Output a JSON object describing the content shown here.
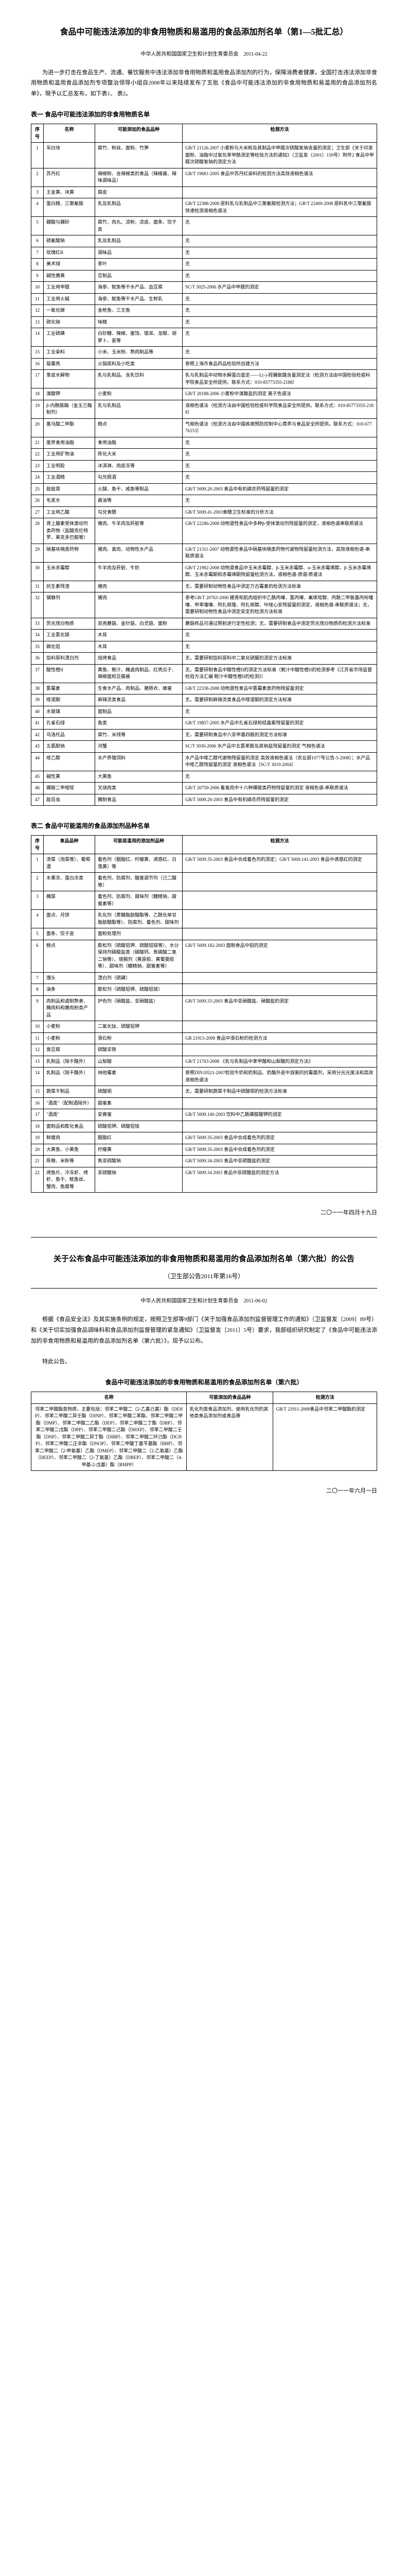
{
  "doc": {
    "title": "食品中可能违法添加的非食用物质和易滥用的食品添加剂名单（第1—5批汇总）",
    "issuer": "中华人民共和国国家卫生和计划生育委员会　2011-04-22",
    "intro": "为进一步打击在食品生产、流通、餐饮服务中违法添加非食用物质和滥用食品添加剂的行为，保障消费者健康，全国打击违法添加非食用物质和滥用食品添加剂专项整治领导小组自2008年以来陆续发布了五批《食品中可能违法添加的非食用物质和易滥用的食品添加剂名单》，現予以汇总发布，如下表1、 表2。",
    "table1_title": "表一 食品中可能违法添加的非食用物质名单",
    "table2_title": "表二 食品中可能滥用的食品添加剂品种名单",
    "footer_date1": "二〇一一年四月十九日",
    "footer_date2": "二〇一一年六月一日"
  },
  "t1h": {
    "c1": "序号",
    "c2": "名称",
    "c3": "可能添加的食品品种",
    "c4": "检测方法"
  },
  "t1": [
    {
      "n": "1",
      "name": "吊白块",
      "food": "腐竹、粉丝、面粉、竹笋",
      "method": "GB/T 21126-2007 小麦粉与大米粉及其制品中甲醛次硫酸氢钠含量的测定；卫生部《关于印发面粉、油脂中过氧化苯甲酰测定等检验方法的通知》（卫监发〔2001〕159号）附件2 食品中甲醛次硫酸氢钠的测定方法"
    },
    {
      "n": "2",
      "name": "苏丹红",
      "food": "辣椒粉、含辣椒类的食品（辣椒酱、辣味调味品）",
      "method": "GB/T 19681-2005 食品中苏丹红染料的检测方法高效液相色谱法"
    },
    {
      "n": "3",
      "name": "王金黄、块黄",
      "food": "腐皮",
      "method": ""
    },
    {
      "n": "4",
      "name": "蛋白精、三聚氰胺",
      "food": "乳及乳制品",
      "method": "GB/T 22388-2008 原料乳与乳制品中三聚氰胺检测方法；GB/T 22400-2008 原料乳中三聚氰胺快速检测液相色谱法"
    },
    {
      "n": "5",
      "name": "硼酸与硼砂",
      "food": "腐竹、肉丸、凉粉、凉皮、面条、饺子皮",
      "method": "无"
    },
    {
      "n": "6",
      "name": "硫氰酸钠",
      "food": "乳及乳制品",
      "method": "无"
    },
    {
      "n": "7",
      "name": "玫瑰红B",
      "food": "调味品",
      "method": "无"
    },
    {
      "n": "8",
      "name": "美术绿",
      "food": "茶叶",
      "method": "无"
    },
    {
      "n": "9",
      "name": "碱性嫩黄",
      "food": "豆制品",
      "method": "无"
    },
    {
      "n": "10",
      "name": "工业用甲醛",
      "food": "海参、鱿鱼等干水产品、血豆腐",
      "method": "SC/T 3025-2006 水产品中甲醛的测定"
    },
    {
      "n": "11",
      "name": "工业用火碱",
      "food": "海参、鱿鱼等干水产品、生鲜乳",
      "method": "无"
    },
    {
      "n": "12",
      "name": "一氧化碳",
      "food": "金枪鱼、三文鱼",
      "method": "无"
    },
    {
      "n": "13",
      "name": "硫化钠",
      "food": "味精",
      "method": "无"
    },
    {
      "n": "14",
      "name": "工业硫磺",
      "food": "白砂糖、辣椒、蜜饯、银耳、龙眼、胡萝卜、姜等",
      "method": "无"
    },
    {
      "n": "15",
      "name": "工业染料",
      "food": "小米、玉米粉、熟肉制品等",
      "method": "无"
    },
    {
      "n": "16",
      "name": "罂粟壳",
      "food": "火锅底料及小吃类",
      "method": "参照上海市食品药品检验所自建方法"
    },
    {
      "n": "17",
      "name": "革皮水解物",
      "food": "乳与乳制品、含乳饮料",
      "method": "乳与乳制品中动物水解蛋白鉴定——L(-)-羟脯氨酸含量测定法（检测方法由中国检验检疫科学院食品安全所提供。联系方式：010-85773355-2188）"
    },
    {
      "n": "18",
      "name": "溴酸钾",
      "food": "小麦粉",
      "method": "GB/T 20188-2006 小麦粉中溴酸盐的测定 离子色谱法"
    },
    {
      "n": "19",
      "name": "β-内酰胺酶（金玉兰酶制剂）",
      "food": "乳与乳制品",
      "method": "液相色谱法（检测方法由中国检验检疫科学院食品安全所提供。联系方式：010-85773355-2188）"
    },
    {
      "n": "20",
      "name": "富马酸二甲酯",
      "food": "糕点",
      "method": "气相色谱法（检测方法由中国疾病预防控制中心营养与食品安全所提供。联系方式：010-67776153）"
    },
    {
      "n": "21",
      "name": "废弃食用油脂",
      "food": "食用油脂",
      "method": "无"
    },
    {
      "n": "22",
      "name": "工业用矿物油",
      "food": "陈化大米",
      "method": "无"
    },
    {
      "n": "23",
      "name": "工业明胶",
      "food": "冰淇淋、肉皮冻等",
      "method": "无"
    },
    {
      "n": "24",
      "name": "工业酒精",
      "food": "勾兑假酒",
      "method": "无"
    },
    {
      "n": "25",
      "name": "敌敌畏",
      "food": "火腿、鱼干、咸鱼等制品",
      "method": "GB/T 5009.20-2003 食品中有机磷农药残留量的测定"
    },
    {
      "n": "26",
      "name": "毛发水",
      "food": "酱油等",
      "method": "无"
    },
    {
      "n": "27",
      "name": "工业用乙酸",
      "food": "勾兑食醋",
      "method": "GB/T 5009.41-2003食醋卫生标准的分析方法"
    },
    {
      "n": "28",
      "name": "肾上腺素受体激动剂类药物（盐酸克伦特罗，莱克多巴胺等）",
      "food": "猪肉、牛羊肉及肝脏等",
      "method": "GB/T 22286-2008 动物源性食品中多种β-受体激动剂残留量的测定，液相色谱串联质谱法"
    },
    {
      "n": "29",
      "name": "硝基呋喃类药物",
      "food": "猪肉、禽肉、动物性水产品",
      "method": "GB/T 21311-2007 动物源性食品中硝基呋喃类药物代谢物残留量检测方法，高效液相色谱-串联质谱法"
    },
    {
      "n": "30",
      "name": "玉米赤霉醇",
      "food": "牛羊肉及肝脏、牛奶",
      "method": "GB/T 21982-2008 动物源食品中玉米赤霉醇、β-玉米赤霉醇、α-玉米赤霉烯醇、β-玉米赤霉烯醇、玉米赤霉酮和赤霉烯酮残留量检测方法，液相色谱-质谱/质谱法"
    },
    {
      "n": "31",
      "name": "抗生素残渣",
      "food": "猪肉",
      "method": "无，需要研制动物性食品中测定万古霉素的检测方法标准"
    },
    {
      "n": "32",
      "name": "镇静剂",
      "food": "猪肉",
      "method": "参考GB/T 20763-2006 猪肾和肌肉组织中乙酰丙嗪、氯丙嗪、氟哌啶醇、丙酰二甲氨基丙吩噻嗪、甲苯噻嗪、阿扎哌隆、阿扎哌醇、咔唑心安残留量的测定，液相色谱-串联质谱法；无，需要研制动物性食品中测定安定的检测方法标准"
    },
    {
      "n": "33",
      "name": "荧光增白物质",
      "food": "双孢蘑菇、金针菇、白灵菇、面粉",
      "method": "蘑菇样品可通过照射进行定性检测；无，需要研制食品中测定荧光增白物质的检测方法标准"
    },
    {
      "n": "34",
      "name": "工业氯化镁",
      "food": "木耳",
      "method": "无"
    },
    {
      "n": "35",
      "name": "磷化铝",
      "food": "木耳",
      "method": "无"
    },
    {
      "n": "36",
      "name": "馅料原料漂白剂",
      "food": "焙烤食品",
      "method": "无，需要研制馅料原料中二氧化硫脲的测定方法标准"
    },
    {
      "n": "37",
      "name": "酸性橙II",
      "food": "黄鱼、鲍汁、腌卤肉制品、红壳瓜子、辣椒面和豆瓣酱",
      "method": "无，需要研制食品中酸性橙II的测定方法标准（鲍汁中酸性橙II的检测参考《江苏省市场监督检验方法汇编 鲍汁中酸性橙II的检测》）"
    },
    {
      "n": "38",
      "name": "氯霉素",
      "food": "生食水产品、肉制品、猪肠衣、蜂蜜",
      "method": "GB/T 22338-2008 动物源性食品中氯霉素类药物残留量测定"
    },
    {
      "n": "39",
      "name": "喹诺酮",
      "food": "麻辣烫类食品",
      "method": "无，需要研制麻辣烫类食品中喹诺酮的测定方法标准"
    },
    {
      "n": "40",
      "name": "水玻璃",
      "food": "面制品",
      "method": "无"
    },
    {
      "n": "41",
      "name": "孔雀石绿",
      "food": "鱼类",
      "method": "GB/T 19857-2005 水产品中孔雀石绿和结晶紫残留量的测定"
    },
    {
      "n": "42",
      "name": "乌洛托品",
      "food": "腐竹、米线等",
      "method": "无，需要研制食品中六亚甲基四胺的测定方法标准"
    },
    {
      "n": "43",
      "name": "五氯酚钠",
      "food": "河蟹",
      "method": "SC/T 3030-2006 水产品中五氯苯酚及其钠盐残留量的测定 气相色谱法"
    },
    {
      "n": "44",
      "name": "喹乙醇",
      "food": "水产养殖饲料",
      "method": "水产品中喹乙醇代谢物残留量的测定 高效液相色谱法（农业部1077号公告-5-2008）；水产品中喹乙醇残留量的测定 液相色谱法（SC/T 3019-2004）"
    },
    {
      "n": "45",
      "name": "碱性黄",
      "food": "大黄鱼",
      "method": "无"
    },
    {
      "n": "46",
      "name": "磺胺二甲嘧啶",
      "food": "叉烧肉类",
      "method": "GB/T 20759-2006 畜禽肉中十六种磺胺类药物残留量的测定 液相色谱-串联质谱法"
    },
    {
      "n": "47",
      "name": "敌百虫",
      "food": "腌制食品",
      "method": "GB/T 5009.20-2003 食品中有机磷农药残留量的测定"
    }
  ],
  "t2h": {
    "c1": "序号",
    "c2": "食品品种",
    "c3": "可能易滥用的添加剂品种",
    "c4": "检测方法"
  },
  "t2": [
    {
      "n": "1",
      "name": "渍菜（泡菜等）、葡萄酒",
      "food": "着色剂（胭脂红、柠檬黄、诱惑红、日落黄）等",
      "method": "GB/T 5009.35-2003  食品中合成着色剂的测定；GB/T 5009.141-2003 食品中诱惑红的测定"
    },
    {
      "n": "2",
      "name": "水果冻、蛋白冻类",
      "food": "着色剂、防腐剂、酸度调节剂（己二酸等）",
      "method": ""
    },
    {
      "n": "3",
      "name": "腌菜",
      "food": "着色剂、防腐剂、甜味剂（糖精钠、甜蜜素等）",
      "method": ""
    },
    {
      "n": "4",
      "name": "面点、月饼",
      "food": "乳化剂（蔗糖脂肪酸酯等、乙酰化单甘脂肪酸酯等）、防腐剂、着色剂、甜味剂",
      "method": ""
    },
    {
      "n": "5",
      "name": "面条、饺子皮",
      "food": "面粉处理剂",
      "method": ""
    },
    {
      "n": "6",
      "name": "糕点",
      "food": "膨松剂（硫酸铝钾、硫酸铝铵等）、水分保持剂磷酸盐类（磷酸钙、焦磷酸二氢二钠等）、增稠剂（黄原胶、黄蜀葵胶等）、甜味剂（糖精钠、甜蜜素等）",
      "method": "GB/T 5009.182-2003 面制食品中铝的测定"
    },
    {
      "n": "7",
      "name": "馒头",
      "food": "漂白剂（硫磺）",
      "method": ""
    },
    {
      "n": "8",
      "name": "油条",
      "food": "膨松剂（硫酸铝钾、硫酸铝铵）",
      "method": ""
    },
    {
      "n": "9",
      "name": "肉制品和卤制熟食、腌肉料和嫩肉粉类产品",
      "food": "护色剂（硝酸盐、亚硝酸盐）",
      "method": "GB/T 5009.33-2003 食品中亚硝酸盐、硝酸盐的测定"
    },
    {
      "n": "10",
      "name": "小麦粉",
      "food": "二氧化钛、硫酸铝钾",
      "method": ""
    },
    {
      "n": "11",
      "name": "小麦粉",
      "food": "滑石粉",
      "method": "GB 21913-2008 食品中滑石粉的检测方法"
    },
    {
      "n": "12",
      "name": "臭豆腐",
      "food": "硫酸亚铁",
      "method": ""
    },
    {
      "n": "13",
      "name": "乳制品（除干酪外）",
      "food": "山梨酸",
      "method": "GB/T 21703-2008 《乳与乳制品中苯甲酸和山梨酸的测定方法》"
    },
    {
      "n": "14",
      "name": "乳制品（除干酪外）",
      "food": "纳他霉素",
      "method": "参照DIN10521-2007检验牛奶和奶制品、奶酪外皮中游离的抗霉菌剂，采用分光光度法和高效液相色谱法"
    },
    {
      "n": "15",
      "name": "蔬菜干制品",
      "food": "硫酸铜",
      "method": "无，需要研制蔬菜干制品中硫酸铜的检测方法标准"
    },
    {
      "n": "16",
      "name": "\"酒类\"（配制酒除外）",
      "food": "甜蜜素",
      "method": ""
    },
    {
      "n": "17",
      "name": "\"酒类\"",
      "food": "安赛蜜",
      "method": "GB/T 5009.140-2003 饮料中乙酰磺胺酸钾的测定"
    },
    {
      "n": "18",
      "name": "面制品和膨化食品",
      "food": "硫酸铝钾、硫酸铝铵",
      "method": ""
    },
    {
      "n": "19",
      "name": "鲜瘦肉",
      "food": "胭脂红",
      "method": "GB/T 5009.35-2003 食品中合成着色剂的测定"
    },
    {
      "n": "20",
      "name": "大黄鱼、小黄鱼",
      "food": "柠檬黄",
      "method": "GB/T 5009.35-2003 食品中合成着色剂的测定"
    },
    {
      "n": "21",
      "name": "陈粮、米粉等",
      "food": "焦亚硫酸钠",
      "method": "GB/T 5009.34-2003 食品中亚硫酸盐的测定"
    },
    {
      "n": "22",
      "name": "烤鱼片、冷冻虾、烤虾、鱼干、鱿鱼丝、蟹肉、鱼糜等",
      "food": "亚硫酸钠",
      "method": "GB/T 5009.34 2003 食品中亚硫酸盐的测定方法"
    }
  ],
  "notice": {
    "title": "关于公布食品中可能违法添加的非食用物质和易滥用的食品添加剂名单（第六批）的公告",
    "sub": "（卫生部公告2011年第16号）",
    "issuer": "中华人民共和国国家卫生和计划生育委员会　2011-06-02",
    "body": "根据《食品安全法》及其实施条例的规定，按照卫生部等9部门《关于加强食品添加剂监督管理工作的通知》（卫监督发〔2009〕89号）和《关于切实加强食品调味料和食品添加剂监督管理的紧急通知》（卫监督发〔2011〕5号）要求，我部组织研究制定了《食品中可能违法添加的非食用物质和易滥用的食品添加剂名单（第六批）》，现予以公布。",
    "closing": "特此公告。",
    "table_title": "食品中可能违法添加的非食用物质和易滥用的食品添加剂名单（第六批）",
    "th1": "名称",
    "th2": "可能添加的食品品种",
    "th3": "检测方法"
  },
  "t3": [
    {
      "name": "邻苯二甲酸酯类物质，主要包括：邻苯二甲酸二（2-乙基己基）酯（DEHP）、邻苯二甲酸二异壬酯（DINP）、邻苯二甲酸二苯酯、邻苯二甲酸二甲酯（DMP）、邻苯二甲酸二乙酯（DEP）、邻苯二甲酸二丁酯（DBP）、邻苯二甲酸二戊酯（DPP）、邻苯二甲酸二己酯（DHXP）、邻苯二甲酸二壬酯（DNP）、邻苯二甲酸二异丁酯（DIBP）、邻苯二甲酸二环己酯（DCHP）、邻苯二甲酸二正辛酯（DNOP）、邻苯二甲酸丁基苄基酯（BBP）、邻苯二甲酸二（2-甲氧基）乙酯（DMEP）、邻苯二甲酸二（2-乙氧基）乙酯（DEEP）、邻苯二甲酸二（2-丁氧基）乙酯（DBEP）、邻苯二甲酸二（4-甲基-2-戊基）酯（BMPP）",
      "food": "乳化剂类食品添加剂、使用乳化剂的其他类食品添加剂或食品等",
      "method": "GB/T 21911-2008食品中邻苯二甲酸酯的测定"
    }
  ]
}
